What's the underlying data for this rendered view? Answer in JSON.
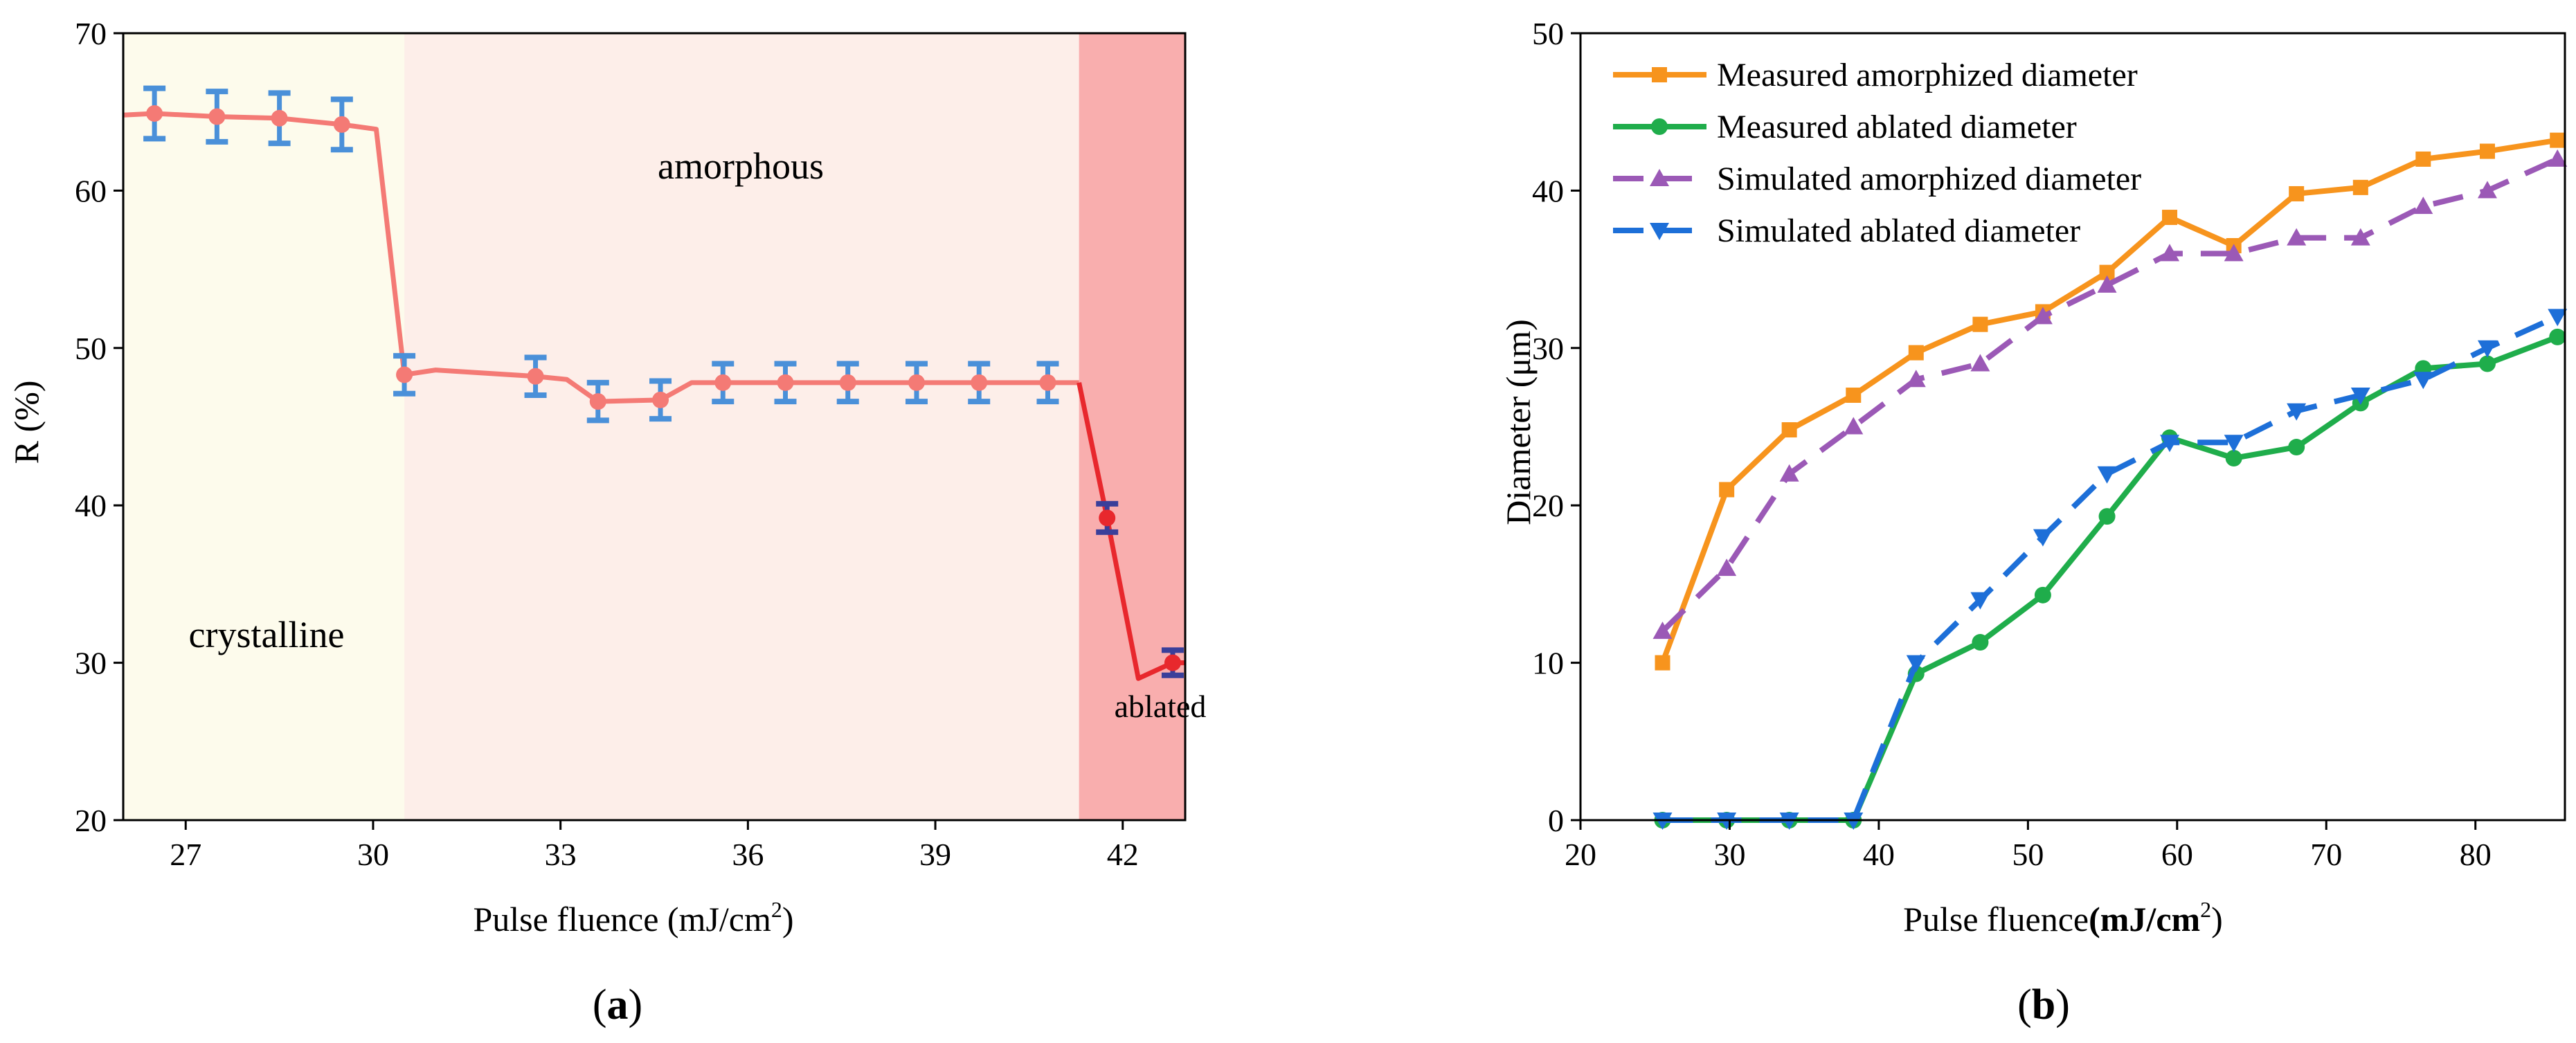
{
  "chart_data": [
    {
      "type": "line",
      "panel_label": "a",
      "xlabel": "Pulse fluence (mJ/cm",
      "xlabel_sup": "2",
      "xlabel_close": ")",
      "ylabel": "R (%)",
      "xlim": [
        26,
        43
      ],
      "ylim": [
        20,
        70
      ],
      "xticks": [
        27,
        30,
        33,
        36,
        39,
        42
      ],
      "yticks": [
        20,
        30,
        40,
        50,
        60,
        70
      ],
      "regions": [
        {
          "label": "crystalline",
          "x_range": [
            26,
            30.5
          ],
          "color": "#fdfbec"
        },
        {
          "label": "amorphous",
          "x_range": [
            30.5,
            41.3
          ],
          "color": "#fdeee9"
        },
        {
          "label": "ablated",
          "x_range": [
            41.3,
            43
          ],
          "color": "#f9aeae"
        }
      ],
      "line": {
        "color": "#f47a75",
        "color_ablated": "#e8282d",
        "x": [
          26,
          26.5,
          27.5,
          28.5,
          29.5,
          30.05,
          30.5,
          31,
          32.6,
          33.1,
          33.6,
          34.6,
          35.1,
          35.6,
          36.6,
          37.6,
          38.7,
          39.7,
          40.8,
          41.3,
          41.75,
          42.25,
          42.8,
          43
        ],
        "y": [
          64.8,
          64.9,
          64.7,
          64.6,
          64.2,
          63.9,
          48.3,
          48.6,
          48.2,
          48.0,
          46.6,
          46.7,
          47.8,
          47.8,
          47.8,
          47.8,
          47.8,
          47.8,
          47.8,
          47.8,
          39.2,
          29.0,
          30.0,
          30.0
        ]
      },
      "points": {
        "x": [
          26.5,
          27.5,
          28.5,
          29.5,
          30.5,
          32.6,
          33.6,
          34.6,
          35.6,
          36.6,
          37.6,
          38.7,
          39.7,
          40.8,
          41.75,
          42.8
        ],
        "y": [
          64.9,
          64.7,
          64.6,
          64.2,
          48.3,
          48.2,
          46.6,
          46.7,
          47.8,
          47.8,
          47.8,
          47.8,
          47.8,
          47.8,
          39.2,
          30.0
        ],
        "err": [
          1.6,
          1.6,
          1.6,
          1.6,
          1.2,
          1.2,
          1.2,
          1.2,
          1.2,
          1.2,
          1.2,
          1.2,
          1.2,
          1.2,
          0.9,
          0.8
        ],
        "colors": [
          "#f47a75",
          "#f47a75",
          "#f47a75",
          "#f47a75",
          "#f47a75",
          "#f47a75",
          "#f47a75",
          "#f47a75",
          "#f47a75",
          "#f47a75",
          "#f47a75",
          "#f47a75",
          "#f47a75",
          "#f47a75",
          "#e8282d",
          "#e8282d"
        ],
        "err_colors": [
          "#4a90d9",
          "#4a90d9",
          "#4a90d9",
          "#4a90d9",
          "#4a90d9",
          "#4a90d9",
          "#4a90d9",
          "#4a90d9",
          "#4a90d9",
          "#4a90d9",
          "#4a90d9",
          "#4a90d9",
          "#4a90d9",
          "#4a90d9",
          "#3a3f9a",
          "#3a3f9a"
        ]
      }
    },
    {
      "type": "line",
      "panel_label": "b",
      "xlabel": "Pulse fluence",
      "xlabel_paren": "(mJ/cm",
      "xlabel_sup": "2",
      "xlabel_close": ")",
      "ylabel": "Diameter (μm)",
      "xlim": [
        20,
        86
      ],
      "ylim": [
        0,
        50
      ],
      "xticks": [
        20,
        30,
        40,
        50,
        60,
        70,
        80
      ],
      "yticks": [
        0,
        10,
        20,
        30,
        40,
        50
      ],
      "legend_position": "top-left",
      "series": [
        {
          "name": "Measured amorphized diameter",
          "color": "#f7941d",
          "marker": "square",
          "dash": false,
          "x": [
            25.5,
            29.8,
            34.0,
            38.3,
            42.5,
            46.8,
            51.0,
            55.3,
            59.5,
            63.8,
            68.0,
            72.3,
            76.5,
            80.8,
            85.5
          ],
          "y": [
            10.0,
            21.0,
            24.8,
            27.0,
            29.7,
            31.5,
            32.3,
            34.8,
            38.3,
            36.5,
            39.8,
            40.2,
            42.0,
            42.5,
            43.2
          ]
        },
        {
          "name": "Measured ablated diameter",
          "color": "#1fad4b",
          "marker": "circle",
          "dash": false,
          "x": [
            25.5,
            29.8,
            34.0,
            38.3,
            42.5,
            46.8,
            51.0,
            55.3,
            59.5,
            63.8,
            68.0,
            72.3,
            76.5,
            80.8,
            85.5
          ],
          "y": [
            0,
            0,
            0,
            0,
            9.3,
            11.3,
            14.3,
            19.3,
            24.3,
            23.0,
            23.7,
            26.5,
            28.7,
            29.0,
            30.7
          ]
        },
        {
          "name": "Simulated amorphized diameter",
          "color": "#9b59b6",
          "marker": "triangle-up",
          "dash": true,
          "x": [
            25.5,
            29.8,
            34.0,
            38.3,
            42.5,
            46.8,
            51.0,
            55.3,
            59.5,
            63.8,
            68.0,
            72.3,
            76.5,
            80.8,
            85.5
          ],
          "y": [
            12.0,
            16.0,
            22.0,
            25.0,
            28.0,
            29.0,
            32.0,
            34.0,
            36.0,
            36.0,
            37.0,
            37.0,
            39.0,
            40.0,
            42.0
          ]
        },
        {
          "name": "Simulated ablated diameter",
          "color": "#1d6fd8",
          "marker": "triangle-down",
          "dash": true,
          "x": [
            25.5,
            29.8,
            34.0,
            38.3,
            42.5,
            46.8,
            51.0,
            55.3,
            59.5,
            63.8,
            68.0,
            72.3,
            76.5,
            80.8,
            85.5
          ],
          "y": [
            0,
            0,
            0,
            0,
            10.0,
            14.0,
            18.0,
            22.0,
            24.0,
            24.0,
            26.0,
            27.0,
            28.0,
            30.0,
            32.0
          ]
        }
      ]
    }
  ]
}
